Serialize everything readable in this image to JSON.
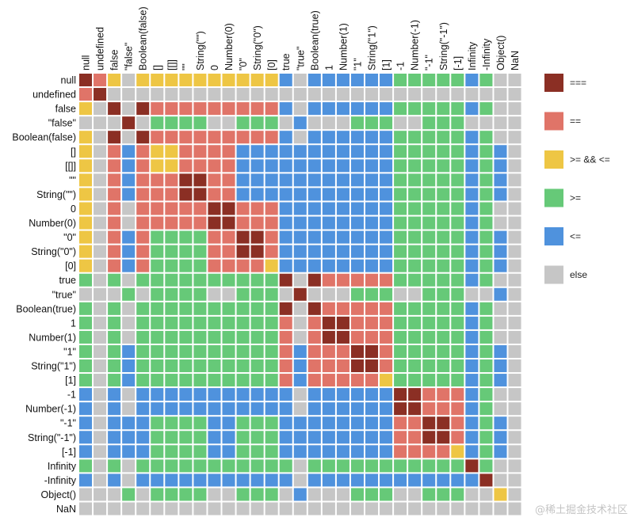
{
  "chart_data": {
    "type": "heatmap",
    "title": "",
    "labels": [
      "null",
      "undefined",
      "false",
      "\"false\"",
      "Boolean(false)",
      "[]",
      "[[]]",
      "\"\"",
      "String(\"\")",
      "0",
      "Number(0)",
      "\"0\"",
      "String(\"0\")",
      "[0]",
      "true",
      "\"true\"",
      "Boolean(true)",
      "1",
      "Number(1)",
      "\"1\"",
      "String(\"1\")",
      "[1]",
      "-1",
      "Number(-1)",
      "\"-1\"",
      "String(\"-1\")",
      "[-1]",
      "Infinity",
      "-Infinity",
      "Object()",
      "NaN"
    ],
    "categories": {
      "S": {
        "label": "===",
        "color": "#8b2f24"
      },
      "E": {
        "label": "==",
        "color": "#e07468"
      },
      "Y": {
        "label": ">= && <=",
        "color": "#eec644"
      },
      "G": {
        "label": ">=",
        "color": "#66c978"
      },
      "B": {
        "label": "<=",
        "color": "#4f92dd"
      },
      "X": {
        "label": "else",
        "color": "#c6c6c6"
      }
    },
    "legend_order": [
      "S",
      "E",
      "Y",
      "G",
      "B",
      "X"
    ],
    "legend_position": "right",
    "matrix": [
      "SEYXYYYYYYYYYYBXBBBBBBGGGGGBGXX",
      "ESXXXXXXXXXXXXXXXXXXXXXXXXXXXXX",
      "YXSXSEEEEEEEEEBXBBBBBBGGGGGBGXX",
      "XXXSXGGGGXXGGGXBXXXGGGXXGGGXXXX",
      "YXSXSEEEEEEEEEBXBBBBBBGGGGGBGXX",
      "YXEBEYYEEEEBBBBBBBBBBBGGGGGBGBX",
      "YXEBEYYEEEEBBBBBBBBBBBGGGGGBGBX",
      "YXEBEEESSEEBBBBBBBBBBBGGGGGBGBX",
      "YXEBEEESSEEBBBBBBBBBBBGGGGGBGBX",
      "YXEXEEEEESSEEEBBBBBBBBGGGGGBGXX",
      "YXEXEEEEESSEEEBBBBBBBBGGGGGBGXX",
      "YXEBEGGGGEESSEBBBBBBBBGGGGGBGBX",
      "YXEBEGGGGEESSEBBBBBBBBGGGGGBGBX",
      "YXEBEGGGGEEEEYBBBBBBBBGGGGGBGBX",
      "GXGXGGGGGGGGGGSXSEEEEEGGGGGBGXX",
      "XXXGXGGGGXXGGGXSXXXGGGXXGGGXXBX",
      "GXGXGGGGGGGGGGSXSEEEEEGGGGGBGXX",
      "GXGXGGGGGGGGGGEXESSEEEGGGGGBGXX",
      "GXGXGGGGGGGGGGEXESSEEEGGGGGBGXX",
      "GXGBGGGGGGGGGGEBEEESSEGGGGGBGBX",
      "GXGBGGGGGGGGGGEBEEESSEGGGGGBGBX",
      "GXGBGGGGGGGGGGEBEEEEEYGGGGGBGBX",
      "BXBXBBBBBBBBBBBXBBBBBBSSEEEBGXX",
      "BXBXBBBBBBBBBBBXBBBBBBSSEEEBGXX",
      "BXBBBGGGGBBGGGBBBBBBBBEESSEBGBX",
      "BXBBBGGGGBBGGGBBBBBBBBEESSEBGBX",
      "BXBBBGGGGBBGGGBBBBBBBBEEEEYBGBX",
      "GXGXGGGGGGGGGGGXGGGGGGGGGGGSGXX",
      "BXBXBBBBBBBBBBBXBBBBBBBBBBBBSXX",
      "XXXGXGGGGXXGGGXBXXXGGGXXGGGXXYX",
      "XXXXXXXXXXXXXXXXXXXXXXXXXXXXXXX"
    ]
  },
  "watermark": "@稀土掘金技术社区"
}
